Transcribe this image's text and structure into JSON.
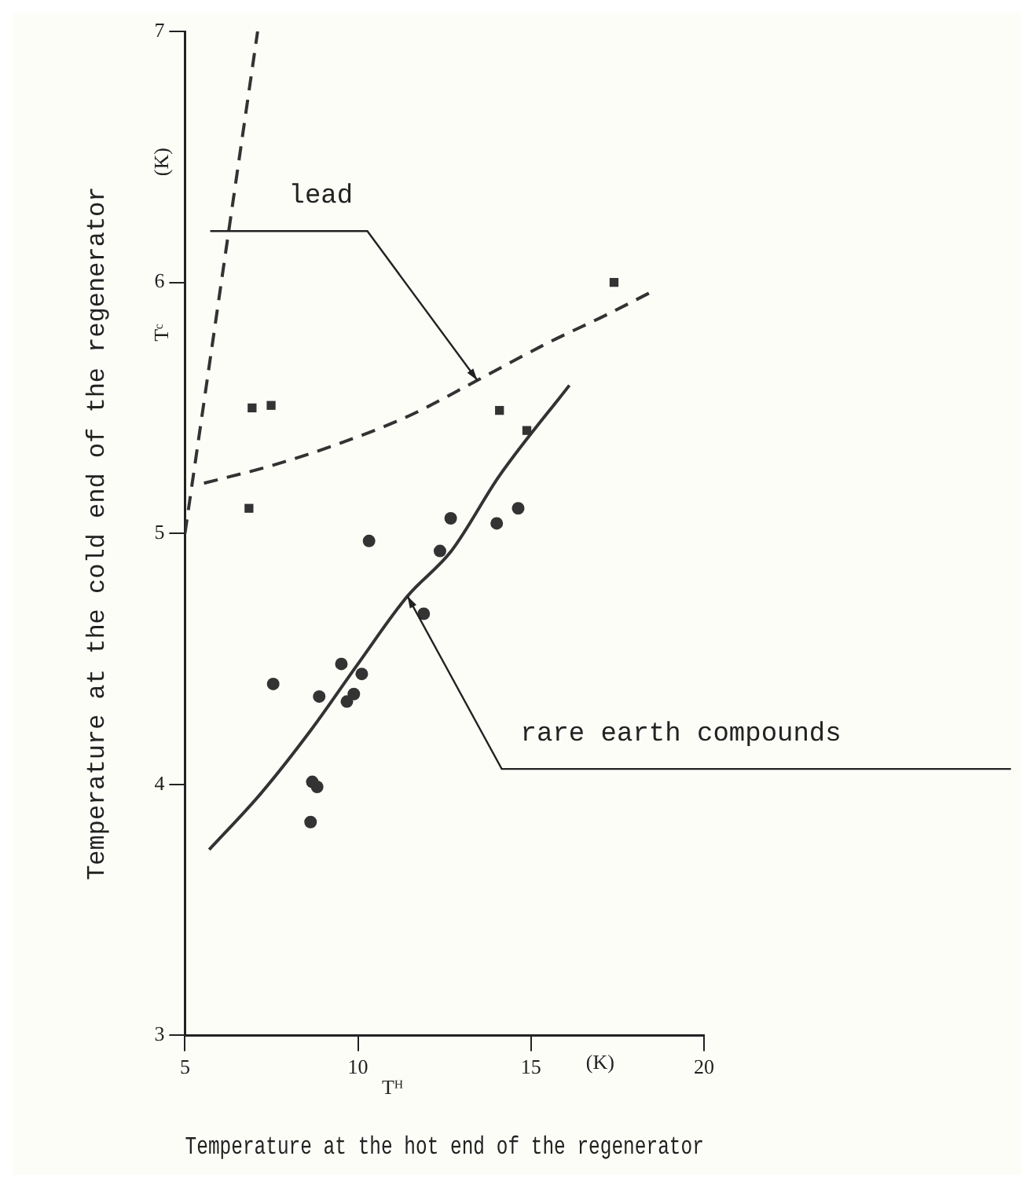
{
  "chart_data": {
    "type": "scatter",
    "xlabel": "Temperature at the hot end of the regenerator",
    "ylabel": "Temperature at the cold end of the regenerator",
    "annotations": [
      "Tᶜ",
      "(K)",
      "Tᴴ",
      "(K)"
    ],
    "xlim": [
      5,
      20
    ],
    "xticks": [
      5,
      10,
      15,
      20
    ],
    "ylim": [
      3,
      7
    ],
    "yticks": [
      3,
      4,
      5,
      6,
      7
    ],
    "grid": false,
    "legend": false,
    "series": [
      {
        "type": "scatter",
        "marker": "square",
        "color": "#333333",
        "x": [
          6.94,
          7.49,
          6.85,
          14.09,
          14.88,
          17.4
        ],
        "values": [
          5.5,
          5.51,
          5.1,
          5.49,
          5.41,
          6.0
        ]
      },
      {
        "type": "scatter",
        "marker": "circle",
        "color": "#333333",
        "x": [
          7.55,
          8.63,
          8.68,
          8.82,
          8.88,
          9.52,
          9.68,
          9.88,
          10.11,
          10.32,
          11.9,
          12.37,
          12.68,
          14.01,
          14.63
        ],
        "values": [
          4.4,
          3.85,
          4.01,
          3.99,
          4.35,
          4.48,
          4.33,
          4.36,
          4.44,
          4.97,
          4.68,
          4.93,
          5.06,
          5.04,
          5.1
        ]
      },
      {
        "type": "line",
        "name": "lead",
        "line_style": "dashed",
        "marker": "none",
        "color": "#333333",
        "x": [
          5.55,
          7.5,
          9.5,
          11.5,
          13.45,
          15.5,
          17.17,
          18.45
        ],
        "values": [
          5.2,
          5.27,
          5.36,
          5.47,
          5.61,
          5.76,
          5.87,
          5.96
        ]
      },
      {
        "type": "line",
        "name": "rare earth compounds",
        "line_style": "solid",
        "marker": "none",
        "color": "#333333",
        "x": [
          5.7,
          7.17,
          8.66,
          10,
          11.43,
          12.7,
          14.09,
          16.11
        ],
        "values": [
          3.74,
          3.96,
          4.22,
          4.48,
          4.75,
          4.93,
          5.23,
          5.59
        ]
      },
      {
        "type": "line",
        "line_style": "dashed",
        "marker": "none",
        "color": "#333333",
        "x": [
          5,
          7.1
        ],
        "values": [
          5,
          7
        ]
      }
    ]
  }
}
